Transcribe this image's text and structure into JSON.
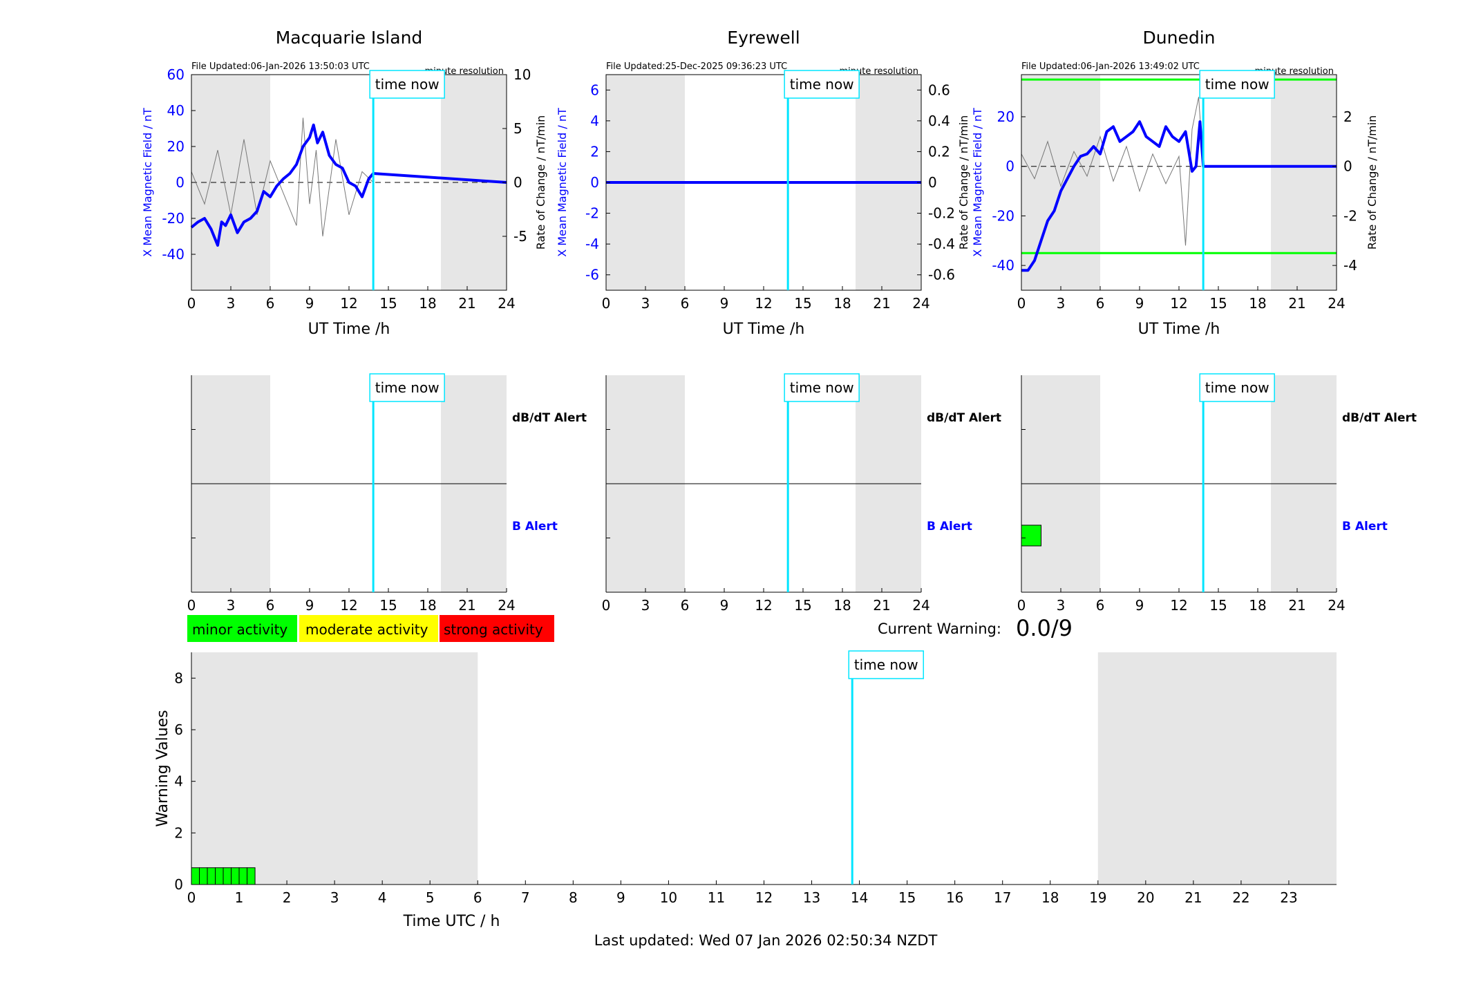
{
  "page": {
    "last_updated": "Last updated: Wed 07 Jan 2026 02:50:34 NZDT",
    "current_warning_label": "Current Warning:",
    "current_warning_value": "0.0/9",
    "time_now_label": "time now"
  },
  "colors": {
    "blue": "#0000ff",
    "cyan": "#00e5ff",
    "green": "#00ff00",
    "yellow": "#ffff00",
    "red": "#ff0000",
    "night_shade": "#e6e6e6"
  },
  "legend": [
    {
      "label": "minor activity",
      "color": "#00ff00"
    },
    {
      "label": "moderate activity",
      "color": "#ffff00"
    },
    {
      "label": "strong activity",
      "color": "#ff0000"
    }
  ],
  "chart_data": [
    {
      "type": "line",
      "title": "Macquarie Island",
      "file_updated": "File Updated:06-Jan-2026 13:50:03 UTC",
      "resolution": "minute resolution",
      "xlabel": "UT Time /h",
      "ylabel": "X Mean Magnetic Field / nT",
      "ylabel_right": "Rate of Change / nT/min",
      "xlim": [
        0,
        24
      ],
      "x_ticks": [
        0,
        3,
        6,
        9,
        12,
        15,
        18,
        21,
        24
      ],
      "ylim": [
        -60,
        60
      ],
      "y_ticks": [
        -40,
        -20,
        0,
        20,
        40,
        60
      ],
      "ylim_right": [
        -10,
        10
      ],
      "y_ticks_right": [
        -5,
        0,
        5,
        10
      ],
      "night_shading": [
        [
          0,
          6
        ],
        [
          19,
          24
        ]
      ],
      "time_now": 13.85,
      "series": [
        {
          "values_x": [
            0,
            0.5,
            1,
            1.5,
            2,
            2.3,
            2.6,
            3,
            3.5,
            4,
            4.5,
            5,
            5.5,
            6,
            6.5,
            7,
            7.5,
            8,
            8.5,
            9,
            9.3,
            9.6,
            10,
            10.5,
            11,
            11.5,
            12,
            12.5,
            13,
            13.5,
            13.85,
            24
          ],
          "values": [
            -25,
            -22,
            -20,
            -26,
            -35,
            -22,
            -24,
            -18,
            -28,
            -22,
            -20,
            -16,
            -5,
            -8,
            -2,
            2,
            5,
            10,
            20,
            25,
            32,
            22,
            28,
            15,
            10,
            8,
            0,
            -2,
            -8,
            2,
            5,
            0
          ]
        }
      ],
      "rate_series": {
        "values_x": [
          0,
          1,
          2,
          3,
          4,
          5,
          6,
          7,
          8,
          8.5,
          9,
          9.5,
          10,
          11,
          12,
          13,
          13.85
        ],
        "values": [
          1,
          -2,
          3,
          -3,
          4,
          -3,
          2,
          -1,
          -4,
          6,
          -2,
          3,
          -5,
          4,
          -3,
          1,
          0
        ]
      },
      "alert_panel": {
        "upper_label": "dB/dT Alert",
        "lower_label": "B Alert",
        "alert_blocks": []
      }
    },
    {
      "type": "line",
      "title": "Eyrewell",
      "file_updated": "File Updated:25-Dec-2025 09:36:23 UTC",
      "resolution": "minute resolution",
      "xlabel": "UT Time /h",
      "ylabel": "X Mean Magnetic Field / nT",
      "ylabel_right": "",
      "xlim": [
        0,
        24
      ],
      "x_ticks": [
        0,
        3,
        6,
        9,
        12,
        15,
        18,
        21,
        24
      ],
      "ylim": [
        -7,
        7
      ],
      "y_ticks": [
        -6,
        -4,
        -2,
        0,
        2,
        4,
        6
      ],
      "ylim_right": [
        -0.7,
        0.7
      ],
      "y_ticks_right": [
        -0.6,
        -0.4,
        -0.2,
        0,
        0.2,
        0.4,
        0.6
      ],
      "night_shading": [
        [
          0,
          6
        ],
        [
          19,
          24
        ]
      ],
      "time_now": 13.85,
      "series": [
        {
          "values_x": [
            0,
            24
          ],
          "values": [
            0,
            0
          ]
        }
      ],
      "rate_series": {
        "values_x": [],
        "values": []
      },
      "alert_panel": {
        "upper_label": "dB/dT Alert",
        "lower_label": "B Alert",
        "alert_blocks": []
      }
    },
    {
      "type": "line",
      "title": "Dunedin",
      "file_updated": "File Updated:06-Jan-2026 13:49:02 UTC",
      "resolution": "minute resolution",
      "xlabel": "UT Time /h",
      "ylabel": "X Mean Magnetic Field / nT",
      "ylabel_right": "Rate of Change / nT/min",
      "xlim": [
        0,
        24
      ],
      "x_ticks": [
        0,
        3,
        6,
        9,
        12,
        15,
        18,
        21,
        24
      ],
      "ylim": [
        -50,
        37
      ],
      "y_ticks": [
        -40,
        -20,
        0,
        20
      ],
      "ylim_right": [
        -5,
        3.7
      ],
      "y_ticks_right": [
        -4,
        -2,
        0,
        2
      ],
      "night_shading": [
        [
          0,
          6
        ],
        [
          19,
          24
        ]
      ],
      "time_now": 13.85,
      "threshold_lines": [
        35,
        -35
      ],
      "series": [
        {
          "values_x": [
            0,
            0.5,
            1,
            1.5,
            2,
            2.5,
            3,
            3.5,
            4,
            4.5,
            5,
            5.5,
            6,
            6.5,
            7,
            7.5,
            8,
            8.5,
            9,
            9.5,
            10,
            10.5,
            11,
            11.5,
            12,
            12.5,
            13,
            13.3,
            13.6,
            13.85,
            24
          ],
          "values": [
            -42,
            -42,
            -38,
            -30,
            -22,
            -18,
            -10,
            -5,
            0,
            4,
            5,
            8,
            5,
            14,
            16,
            10,
            12,
            14,
            18,
            12,
            10,
            8,
            16,
            12,
            10,
            14,
            -2,
            0,
            18,
            0,
            0
          ]
        }
      ],
      "rate_series": {
        "values_x": [
          0,
          1,
          2,
          3,
          4,
          5,
          6,
          7,
          8,
          9,
          10,
          11,
          12,
          12.5,
          13,
          13.5,
          13.85
        ],
        "values": [
          0.5,
          -0.5,
          1,
          -0.8,
          0.6,
          -0.4,
          1.2,
          -0.6,
          0.8,
          -1,
          0.5,
          -0.7,
          0.4,
          -3.2,
          1.5,
          2.8,
          0
        ]
      },
      "alert_panel": {
        "upper_label": "dB/dT Alert",
        "lower_label": "B Alert",
        "alert_blocks": [
          {
            "x0": 0,
            "x1": 1.5
          }
        ]
      }
    },
    {
      "type": "bar",
      "title": "",
      "xlabel": "Time UTC / h",
      "ylabel": "Warning Values",
      "xlim": [
        0,
        24
      ],
      "x_ticks": [
        0,
        1,
        2,
        3,
        4,
        5,
        6,
        7,
        8,
        9,
        10,
        11,
        12,
        13,
        14,
        15,
        16,
        17,
        18,
        19,
        20,
        21,
        22,
        23
      ],
      "ylim": [
        0,
        9
      ],
      "y_ticks": [
        0,
        2,
        4,
        6,
        8
      ],
      "night_shading": [
        [
          0,
          6
        ],
        [
          19,
          24
        ]
      ],
      "time_now": 13.85,
      "bar_width": 0.1667,
      "bars_x": [
        0,
        0.1667,
        0.3333,
        0.5,
        0.6667,
        0.8333,
        1.0,
        1.1667
      ],
      "values": [
        0.65,
        0.65,
        0.65,
        0.65,
        0.65,
        0.65,
        0.65,
        0.65
      ]
    }
  ]
}
